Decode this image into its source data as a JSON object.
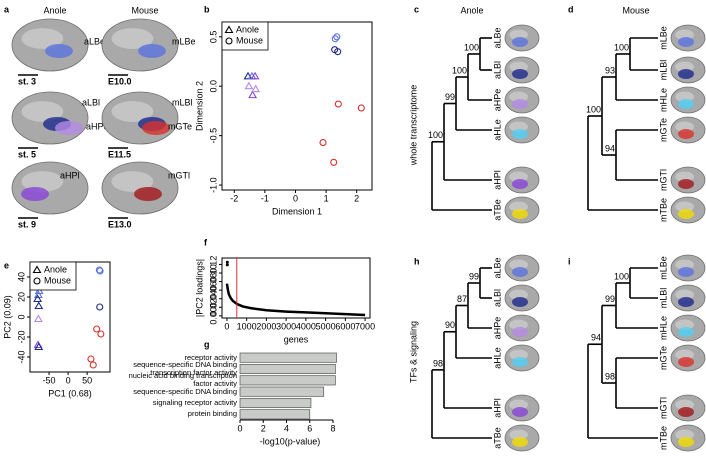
{
  "panel_labels": [
    "a",
    "b",
    "c",
    "d",
    "e",
    "f",
    "g",
    "h",
    "i"
  ],
  "anatomy": {
    "columns": [
      "Anole",
      "Mouse"
    ],
    "anole": [
      {
        "labels": [
          "aLBe"
        ],
        "colors": [
          "#5b73e0"
        ],
        "stage": "st. 3"
      },
      {
        "labels": [
          "aLBl",
          "aHPe"
        ],
        "colors": [
          "#1b2a8c",
          "#b48ae6"
        ],
        "stage": "st. 5"
      },
      {
        "labels": [
          "aHPl"
        ],
        "colors": [
          "#8844d8"
        ],
        "stage": "st. 9"
      }
    ],
    "mouse": [
      {
        "labels": [
          "mLBe"
        ],
        "colors": [
          "#5b73e0"
        ],
        "stage": "E10.0"
      },
      {
        "labels": [
          "mLBl",
          "mGTe"
        ],
        "colors": [
          "#1b2a8c",
          "#d8312c"
        ],
        "stage": "E11.5"
      },
      {
        "labels": [
          "mGTl"
        ],
        "colors": [
          "#a3161c"
        ],
        "stage": "E13.0"
      }
    ]
  },
  "trees": {
    "column_titles": [
      "Anole",
      "Mouse"
    ],
    "row_labels": [
      "whole transcriptome",
      "TFs & signaling"
    ],
    "support_color": "#d8312c",
    "items": [
      {
        "leaves": [
          {
            "label": "aLBe",
            "color": "#5b73e0"
          },
          {
            "label": "aLBl",
            "color": "#1b2a8c"
          },
          {
            "label": "aHPe",
            "color": "#b48ae6"
          },
          {
            "label": "aHLe",
            "color": "#4fd0f5"
          },
          {
            "label": "aHPl",
            "color": "#8844d8"
          },
          {
            "label": "aTBe",
            "color": "#f2dc00"
          }
        ],
        "support": [
          100,
          100,
          99,
          100
        ]
      },
      {
        "leaves": [
          {
            "label": "mLBe",
            "color": "#5b73e0"
          },
          {
            "label": "mLBl",
            "color": "#1b2a8c"
          },
          {
            "label": "mHLe",
            "color": "#4fd0f5"
          },
          {
            "label": "mGTe",
            "color": "#d8312c"
          },
          {
            "label": "mGTl",
            "color": "#a3161c"
          },
          {
            "label": "mTBe",
            "color": "#f2dc00"
          }
        ],
        "support": [
          100,
          93,
          100,
          94
        ]
      },
      {
        "leaves": [
          {
            "label": "aLBe",
            "color": "#5b73e0"
          },
          {
            "label": "aLBl",
            "color": "#1b2a8c"
          },
          {
            "label": "aHPe",
            "color": "#b48ae6"
          },
          {
            "label": "aHLe",
            "color": "#4fd0f5"
          },
          {
            "label": "aHPl",
            "color": "#8844d8"
          },
          {
            "label": "aTBe",
            "color": "#f2dc00"
          }
        ],
        "support": [
          99,
          87,
          90,
          98
        ]
      },
      {
        "leaves": [
          {
            "label": "mLBe",
            "color": "#5b73e0"
          },
          {
            "label": "mLBl",
            "color": "#1b2a8c"
          },
          {
            "label": "mHLe",
            "color": "#4fd0f5"
          },
          {
            "label": "mGTe",
            "color": "#d8312c"
          },
          {
            "label": "mGTl",
            "color": "#a3161c"
          },
          {
            "label": "mTBe",
            "color": "#f2dc00"
          }
        ],
        "support": [
          100,
          99,
          94,
          98
        ]
      }
    ]
  },
  "chart_data": [
    {
      "type": "scatter",
      "xlabel": "Dimension 1",
      "ylabel": "Dimension 2",
      "xlim": [
        -2.4,
        2.5
      ],
      "xticks": [
        -2,
        -1,
        0,
        1,
        2
      ],
      "ylim": [
        -1.05,
        0.65
      ],
      "yticks": [
        {
          "value": -1,
          "label": "-1.0"
        },
        -0.5,
        {
          "value": 0,
          "label": "0.0"
        },
        0.5
      ],
      "legend": "top-left",
      "series": [
        {
          "name": "Anole",
          "marker": "triangle",
          "x": [
            -1.55,
            -1.42,
            -1.32,
            -1.52,
            -1.4,
            -1.3
          ],
          "values": [
            0.1,
            0.1,
            0.1,
            0.0,
            -0.09,
            -0.03
          ],
          "colors": [
            "#1b2a8c",
            "#5b73e0",
            "#8844d8",
            "#b48ae6",
            "#8844d8",
            "#b48ae6"
          ]
        },
        {
          "name": "Mouse",
          "marker": "circle",
          "x": [
            1.3,
            1.35,
            1.28,
            1.38,
            1.4,
            2.15,
            0.9,
            1.25
          ],
          "values": [
            0.48,
            0.5,
            0.37,
            0.35,
            -0.18,
            -0.22,
            -0.57,
            -0.77
          ],
          "colors": [
            "#5b73e0",
            "#5b73e0",
            "#1b2a8c",
            "#1b2a8c",
            "#d8312c",
            "#d8312c",
            "#d8312c",
            "#d8312c"
          ]
        }
      ]
    },
    {
      "type": "scatter",
      "xlabel": "PC1 (0.68)",
      "ylabel": "PC2 (0.09)",
      "xlim": [
        -100,
        110
      ],
      "xticks": [
        -50,
        0,
        50
      ],
      "ylim": [
        -55,
        55
      ],
      "yticks": [
        -40,
        -20,
        0,
        20,
        40
      ],
      "legend": "top-left",
      "series": [
        {
          "name": "Anole",
          "marker": "triangle",
          "x": [
            -76,
            -78,
            -80,
            -77,
            -78,
            -79,
            -77
          ],
          "values": [
            26,
            22,
            18,
            11,
            -2,
            -28,
            -30
          ],
          "colors": [
            "#5b73e0",
            "#5b73e0",
            "#1b2a8c",
            "#1b2a8c",
            "#b48ae6",
            "#8844d8",
            "#1b2a8c"
          ]
        },
        {
          "name": "Mouse",
          "marker": "circle",
          "x": [
            82,
            84,
            83,
            75,
            86,
            60,
            66
          ],
          "values": [
            47,
            46,
            10,
            -12,
            -17,
            -42,
            -48
          ],
          "colors": [
            "#5b73e0",
            "#5b73e0",
            "#1b2a8c",
            "#d8312c",
            "#d8312c",
            "#d8312c",
            "#d8312c"
          ]
        }
      ]
    },
    {
      "type": "line",
      "xlabel": "genes",
      "ylabel": "|PC2 loadings|",
      "xlim": [
        -250,
        7250
      ],
      "xticks": [
        0,
        1000,
        2000,
        3000,
        4000,
        5000,
        6000,
        7000
      ],
      "ylim": [
        -0.005,
        0.135
      ],
      "yticks": [
        {
          "value": 0,
          "label": "0.00"
        },
        {
          "value": 0.02,
          "label": "0.02"
        },
        {
          "value": 0.04,
          "label": "0.04"
        },
        {
          "value": 0.06,
          "label": "0.06"
        },
        {
          "value": 0.08,
          "label": "0.08"
        },
        {
          "value": 0.1,
          "label": "0.10"
        },
        {
          "value": 0.12,
          "label": "0.12"
        }
      ],
      "vline_x": 500,
      "vline_color": "#e03030",
      "series": [
        {
          "color": "#000000",
          "x": [
            0,
            50,
            100,
            200,
            300,
            500,
            800,
            1200,
            2000,
            3000,
            4000,
            5000,
            6000,
            7000
          ],
          "values": [
            0.075,
            0.06,
            0.05,
            0.041,
            0.035,
            0.028,
            0.022,
            0.018,
            0.013,
            0.01,
            0.008,
            0.006,
            0.004,
            0.002
          ]
        },
        {
          "color": "#000000",
          "marker": "point",
          "x": [
            20,
            20
          ],
          "values": [
            0.125,
            0.119
          ]
        }
      ]
    },
    {
      "type": "barh",
      "xlabel": "-log10(p-value)",
      "color": "#c8cbc8",
      "xlim": [
        0,
        8.6
      ],
      "xticks": [
        0,
        2,
        4,
        6,
        8
      ],
      "categories": [
        "receptor activity",
        "sequence-specific DNA binding transcription factor activity",
        "nucleic acid binding transcription factor activity",
        "sequence-specific DNA binding",
        "signaling receptor activity",
        "protein binding"
      ],
      "values": [
        8.3,
        8.2,
        8.2,
        7.2,
        6.1,
        6.0
      ]
    }
  ]
}
